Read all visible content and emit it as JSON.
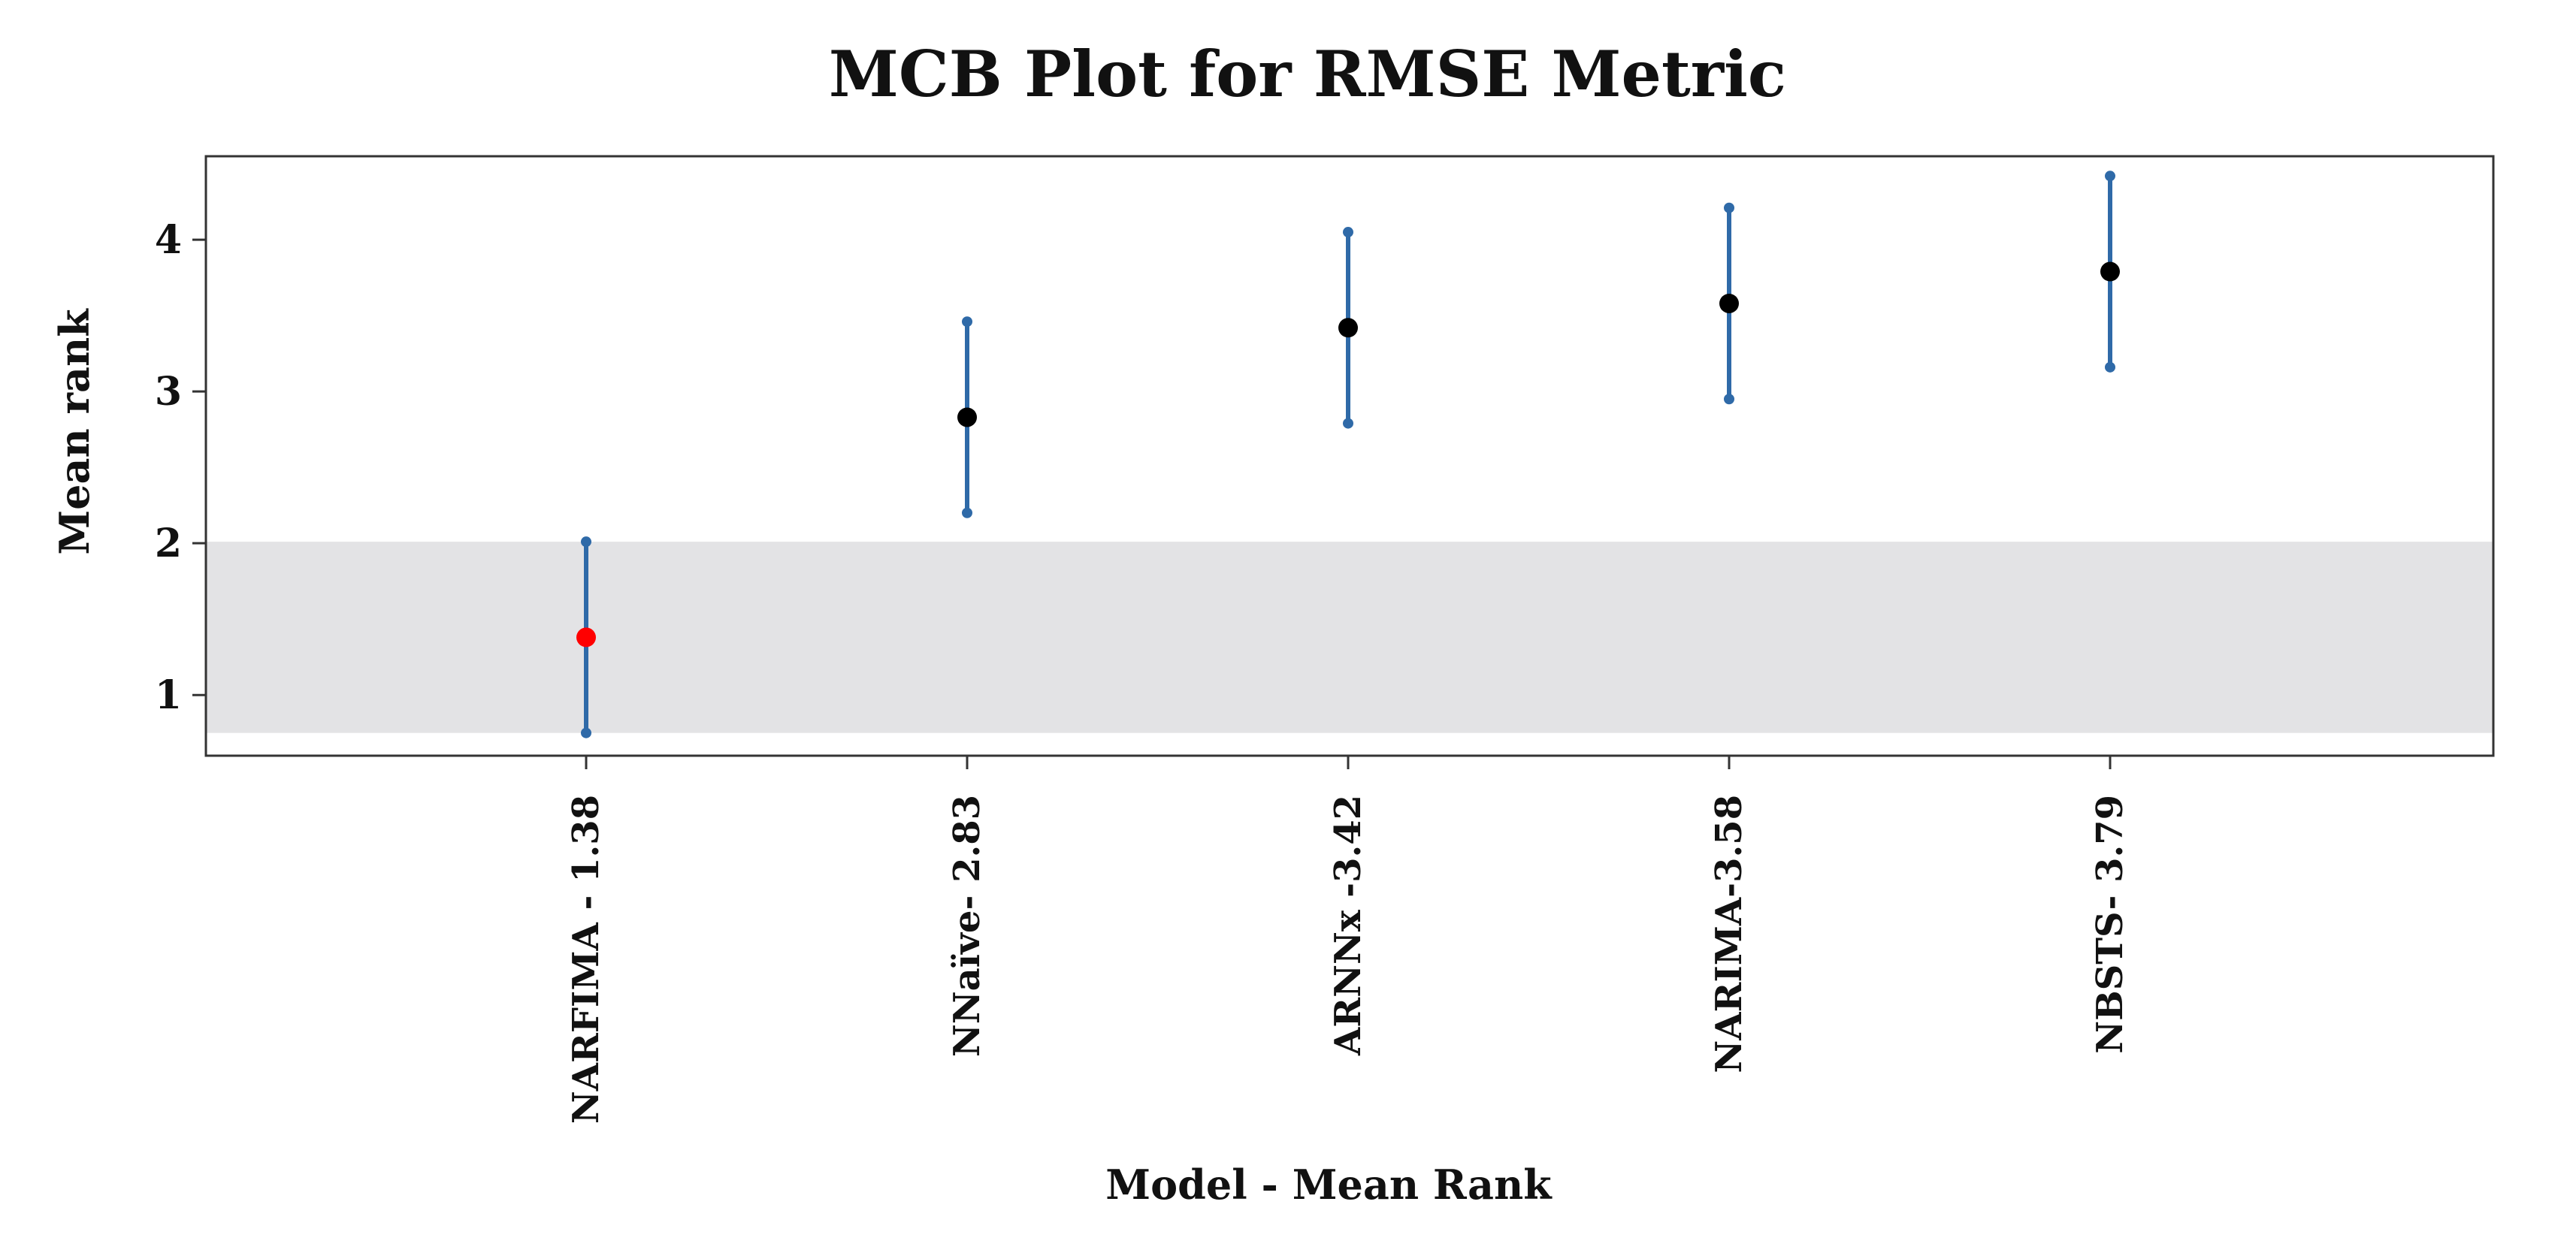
{
  "chart_data": {
    "type": "scatter",
    "title": "MCB Plot for RMSE Metric",
    "xlabel": "Model - Mean Rank",
    "ylabel": "Mean rank",
    "categories": [
      "NARFIMA - 1.38",
      "NNaïve- 2.83",
      "ARNNx -3.42",
      "NARIMA-3.58",
      "NBSTS- 3.79"
    ],
    "mean_rank": [
      1.38,
      2.83,
      3.42,
      3.58,
      3.79
    ],
    "interval_lower": [
      0.75,
      2.2,
      2.79,
      2.95,
      3.16
    ],
    "interval_upper": [
      2.01,
      3.46,
      4.05,
      4.21,
      4.42
    ],
    "best_band": [
      0.75,
      2.01
    ],
    "ylim": [
      0.6,
      4.55
    ],
    "yticks": [
      1,
      2,
      3,
      4
    ],
    "grid": false,
    "legend": "none",
    "colors": {
      "best_point": "#ff0000",
      "point": "#000000",
      "interval": "#2f6aa8",
      "band": "#e3e3e5",
      "frame": "#333333"
    }
  }
}
